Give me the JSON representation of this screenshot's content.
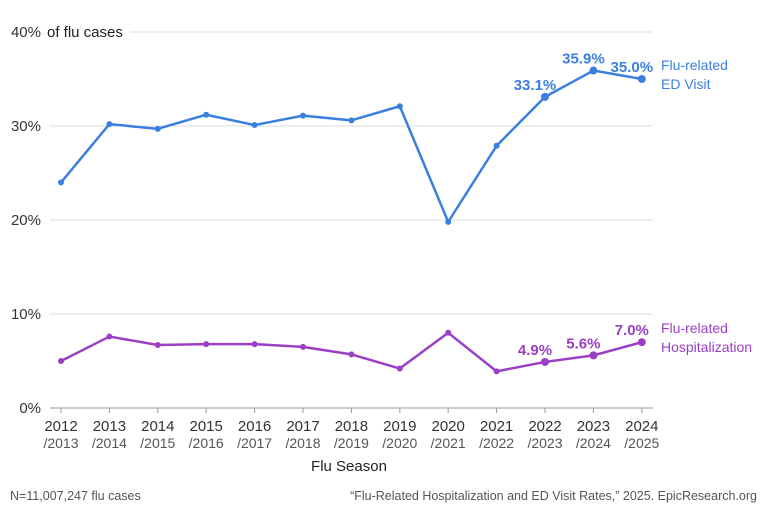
{
  "chart_data": {
    "type": "line",
    "title": "",
    "xlabel": "Flu Season",
    "ylabel": "of flu cases",
    "ylim": [
      0,
      40
    ],
    "yticks": [
      0,
      10,
      20,
      30,
      40
    ],
    "ytick_labels": [
      "0%",
      "10%",
      "20%",
      "30%",
      "40%"
    ],
    "categories": [
      {
        "year": "2012",
        "sub": "/2013"
      },
      {
        "year": "2013",
        "sub": "/2014"
      },
      {
        "year": "2014",
        "sub": "/2015"
      },
      {
        "year": "2015",
        "sub": "/2016"
      },
      {
        "year": "2016",
        "sub": "/2017"
      },
      {
        "year": "2017",
        "sub": "/2018"
      },
      {
        "year": "2018",
        "sub": "/2019"
      },
      {
        "year": "2019",
        "sub": "/2020"
      },
      {
        "year": "2020",
        "sub": "/2021"
      },
      {
        "year": "2021",
        "sub": "/2022"
      },
      {
        "year": "2022",
        "sub": "/2023"
      },
      {
        "year": "2023",
        "sub": "/2024"
      },
      {
        "year": "2024",
        "sub": "/2025"
      }
    ],
    "series": [
      {
        "name_lines": [
          "Flu-related",
          "ED Visit"
        ],
        "color": "#3a7fe0",
        "values": [
          24.0,
          30.2,
          29.7,
          31.2,
          30.1,
          31.1,
          30.6,
          32.1,
          19.8,
          27.9,
          33.1,
          35.9,
          35.0
        ],
        "labels": [
          {
            "index": 10,
            "text": "33.1%"
          },
          {
            "index": 11,
            "text": "35.9%"
          },
          {
            "index": 12,
            "text": "35.0%"
          }
        ]
      },
      {
        "name_lines": [
          "Flu-related",
          "Hospitalization"
        ],
        "color": "#9b3fc4",
        "values": [
          5.0,
          7.6,
          6.7,
          6.8,
          6.8,
          6.5,
          5.7,
          4.2,
          8.0,
          3.9,
          4.9,
          5.6,
          7.0
        ],
        "labels": [
          {
            "index": 10,
            "text": "4.9%"
          },
          {
            "index": 11,
            "text": "5.6%"
          },
          {
            "index": 12,
            "text": "7.0%"
          }
        ]
      }
    ]
  },
  "footer": {
    "left": "N=11,007,247 flu cases",
    "right": "“Flu-Related Hospitalization and ED Visit Rates,” 2025. EpicResearch.org"
  }
}
